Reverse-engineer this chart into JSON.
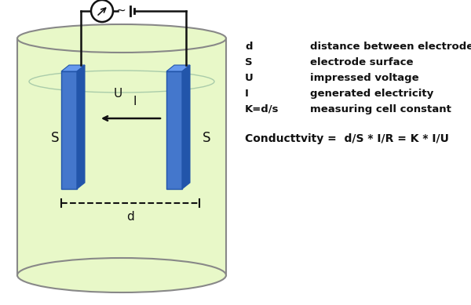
{
  "bg_color": "#ffffff",
  "cylinder_color": "#e8f8c8",
  "cylinder_edge_color": "#888888",
  "electrode_color_front": "#4477cc",
  "electrode_color_top": "#6699ee",
  "electrode_color_side": "#2255aa",
  "wire_color": "#111111",
  "text_color": "#111111",
  "label_U": "U",
  "label_I_arrow": "I",
  "label_S_left": "S",
  "label_S_right": "S",
  "label_d": "d",
  "legend_lines": [
    [
      "d",
      "distance between electrodes"
    ],
    [
      "S",
      "electrode surface"
    ],
    [
      "U",
      "impressed voltage"
    ],
    [
      "I",
      "generated electricity"
    ],
    [
      "K=d/s",
      "measuring cell constant"
    ]
  ],
  "formula": "Conducttvity =  d/S * I/R = K * I/U",
  "figsize": [
    6.0,
    3.89
  ],
  "dpi": 100
}
